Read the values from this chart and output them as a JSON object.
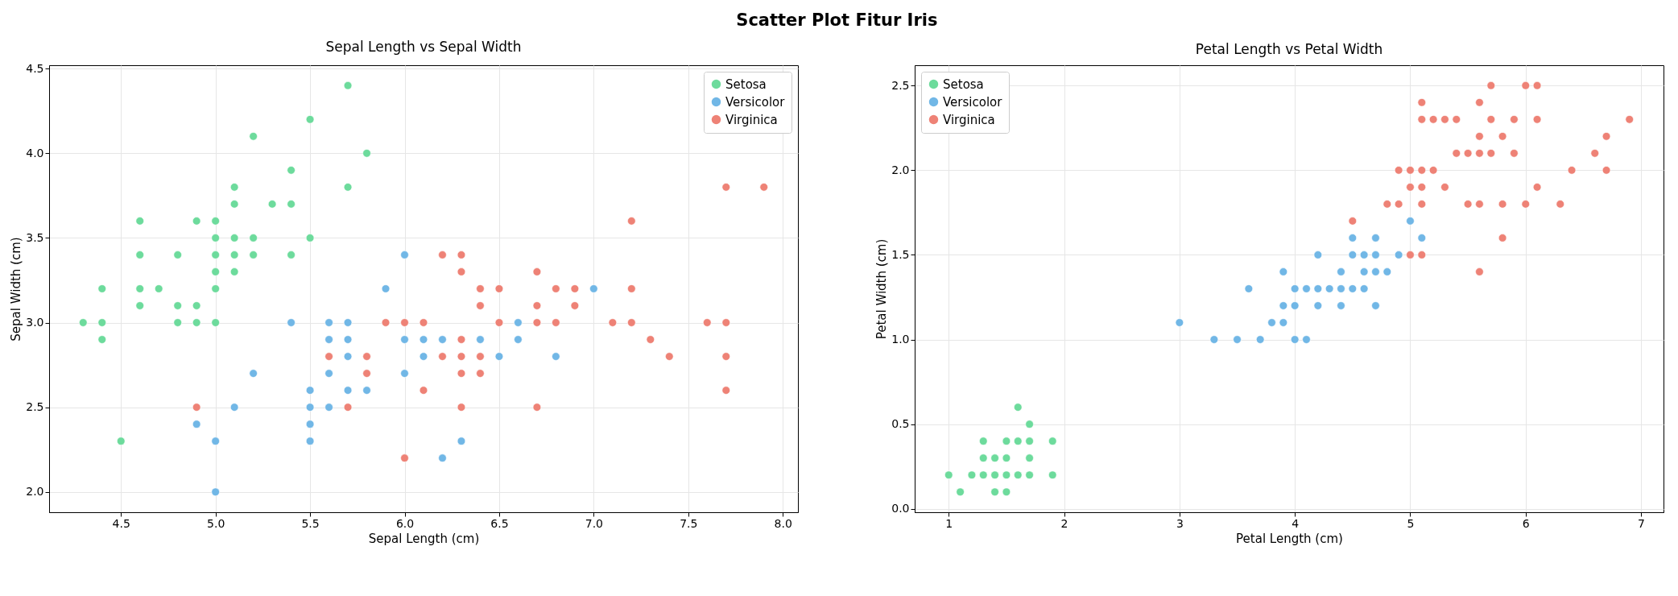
{
  "chart_data": [
    {
      "type": "scatter",
      "title": "Sepal Length vs Sepal Width",
      "xlabel": "Sepal Length (cm)",
      "ylabel": "Sepal Width (cm)",
      "annotations": [
        "Scatter Plot Fitur Iris"
      ],
      "legend": "top right",
      "grid": true,
      "marker": "circle",
      "xlim": [
        4.12,
        8.08
      ],
      "xticks": [
        4.5,
        {
          "value": 5,
          "label": "5.0"
        },
        5.5,
        {
          "value": 6,
          "label": "6.0"
        },
        6.5,
        {
          "value": 7,
          "label": "7.0"
        },
        7.5,
        {
          "value": 8,
          "label": "8.0"
        }
      ],
      "ylim": [
        1.88,
        4.52
      ],
      "yticks": [
        {
          "value": 2,
          "label": "2.0"
        },
        2.5,
        {
          "value": 3,
          "label": "3.0"
        },
        3.5,
        {
          "value": 4,
          "label": "4.0"
        },
        4.5
      ],
      "series": [
        {
          "name": "Setosa",
          "color": "#6ddb9c",
          "x": [
            5.1,
            4.9,
            4.7,
            4.6,
            5.0,
            5.4,
            4.6,
            5.0,
            4.4,
            4.9,
            5.4,
            4.8,
            4.8,
            4.3,
            5.8,
            5.7,
            5.7,
            5.1,
            5.4,
            5.1,
            4.6,
            5.1,
            5.0,
            5.2,
            5.2,
            4.8,
            5.2,
            5.5,
            5.0,
            5.5,
            4.9,
            4.4,
            5.1,
            5.0,
            4.5,
            4.4,
            4.6,
            5.3,
            5.0
          ],
          "values": [
            3.5,
            3.0,
            3.2,
            3.1,
            3.6,
            3.9,
            3.4,
            3.4,
            2.9,
            3.1,
            3.7,
            3.4,
            3.0,
            3.0,
            4.0,
            4.4,
            3.8,
            3.8,
            3.4,
            3.7,
            3.6,
            3.3,
            3.0,
            3.5,
            3.4,
            3.1,
            4.1,
            4.2,
            3.2,
            3.5,
            3.6,
            3.0,
            3.4,
            3.5,
            2.3,
            3.2,
            3.2,
            3.7,
            3.3
          ]
        },
        {
          "name": "Versicolor",
          "color": "#71b7e6",
          "x": [
            7.0,
            5.5,
            6.5,
            5.7,
            4.9,
            6.6,
            5.2,
            5.0,
            6.1,
            5.6,
            5.6,
            6.2,
            5.6,
            5.9,
            6.1,
            6.4,
            6.6,
            6.8,
            6.0,
            5.7,
            5.5,
            6.0,
            5.4,
            6.0,
            6.3,
            5.5,
            5.5,
            5.8,
            5.0,
            5.6,
            5.7,
            5.7,
            6.2,
            5.1
          ],
          "values": [
            3.2,
            2.3,
            2.8,
            2.8,
            2.4,
            2.9,
            2.7,
            2.0,
            2.9,
            2.9,
            3.0,
            2.2,
            2.5,
            3.2,
            2.8,
            2.9,
            3.0,
            2.8,
            2.9,
            2.6,
            2.4,
            2.7,
            3.0,
            3.4,
            2.3,
            2.5,
            2.6,
            2.6,
            2.3,
            2.7,
            3.0,
            2.9,
            2.9,
            2.5
          ]
        },
        {
          "name": "Virginica",
          "color": "#ee8276",
          "x": [
            6.3,
            5.8,
            7.1,
            6.3,
            6.5,
            7.6,
            4.9,
            7.3,
            6.7,
            7.2,
            6.5,
            6.4,
            6.8,
            5.7,
            5.8,
            6.4,
            7.7,
            7.7,
            6.0,
            6.9,
            5.6,
            7.7,
            6.3,
            6.7,
            7.2,
            6.2,
            6.1,
            6.4,
            7.2,
            7.4,
            7.9,
            6.3,
            6.1,
            7.7,
            6.3,
            6.4,
            6.0,
            6.9,
            6.7,
            6.8,
            6.7,
            6.3,
            6.2,
            5.9
          ],
          "values": [
            3.3,
            2.7,
            3.0,
            2.9,
            3.0,
            3.0,
            2.5,
            2.9,
            2.5,
            3.6,
            3.2,
            2.7,
            3.0,
            2.5,
            2.8,
            3.2,
            3.8,
            2.6,
            2.2,
            3.2,
            2.8,
            2.8,
            2.7,
            3.3,
            3.2,
            2.8,
            3.0,
            2.8,
            3.0,
            2.8,
            3.8,
            2.8,
            2.6,
            3.0,
            3.4,
            3.1,
            3.0,
            3.1,
            3.1,
            3.2,
            3.0,
            2.5,
            3.4,
            3.0
          ]
        }
      ]
    },
    {
      "type": "scatter",
      "title": "Petal Length vs Petal Width",
      "xlabel": "Petal Length (cm)",
      "ylabel": "Petal Width (cm)",
      "legend": "top left",
      "grid": true,
      "marker": "circle",
      "xlim": [
        0.705,
        7.195
      ],
      "xticks": [
        1,
        2,
        3,
        4,
        5,
        6,
        7
      ],
      "ylim": [
        -0.02,
        2.62
      ],
      "yticks": [
        {
          "value": 0,
          "label": "0.0"
        },
        0.5,
        {
          "value": 1,
          "label": "1.0"
        },
        1.5,
        {
          "value": 2,
          "label": "2.0"
        },
        2.5
      ],
      "series": [
        {
          "name": "Setosa",
          "color": "#6ddb9c",
          "x": [
            1.4,
            1.3,
            1.5,
            1.7,
            1.4,
            1.5,
            1.6,
            1.4,
            1.1,
            1.2,
            1.5,
            1.3,
            1.7,
            1.5,
            1.7,
            1.0,
            1.7,
            1.9,
            1.6,
            1.3,
            1.6,
            1.9
          ],
          "values": [
            0.2,
            0.2,
            0.2,
            0.4,
            0.3,
            0.1,
            0.2,
            0.1,
            0.1,
            0.2,
            0.4,
            0.4,
            0.3,
            0.3,
            0.2,
            0.2,
            0.5,
            0.2,
            0.4,
            0.3,
            0.6,
            0.4
          ]
        },
        {
          "name": "Versicolor",
          "color": "#71b7e6",
          "x": [
            4.7,
            4.5,
            4.9,
            4.0,
            4.6,
            4.5,
            4.7,
            3.3,
            4.6,
            3.9,
            3.5,
            4.2,
            4.0,
            3.6,
            4.4,
            4.1,
            3.9,
            4.7,
            4.3,
            4.8,
            5.0,
            3.8,
            3.7,
            3.9,
            5.1,
            4.5,
            4.7,
            4.4,
            4.1,
            4.4,
            4.6,
            4.0,
            4.2,
            4.2,
            3.0
          ],
          "values": [
            1.4,
            1.5,
            1.5,
            1.3,
            1.5,
            1.3,
            1.6,
            1.0,
            1.3,
            1.4,
            1.0,
            1.5,
            1.0,
            1.3,
            1.4,
            1.0,
            1.1,
            1.2,
            1.3,
            1.4,
            1.7,
            1.1,
            1.0,
            1.2,
            1.6,
            1.6,
            1.5,
            1.3,
            1.3,
            1.2,
            1.4,
            1.2,
            1.3,
            1.2,
            1.1
          ]
        },
        {
          "name": "Virginica",
          "color": "#ee8276",
          "x": [
            6.0,
            5.1,
            5.9,
            5.6,
            5.8,
            6.6,
            4.5,
            6.3,
            5.8,
            6.1,
            5.1,
            5.3,
            5.5,
            5.0,
            5.1,
            5.3,
            5.5,
            6.7,
            6.9,
            5.0,
            5.7,
            4.9,
            6.7,
            4.9,
            5.7,
            6.0,
            4.8,
            5.6,
            5.8,
            6.1,
            6.4,
            5.6,
            5.1,
            5.6,
            6.1,
            5.6,
            5.4,
            5.1,
            5.9,
            5.7,
            5.2,
            5.0,
            5.2,
            5.4,
            5.1
          ],
          "values": [
            2.5,
            1.9,
            2.1,
            1.8,
            2.2,
            2.1,
            1.7,
            1.8,
            1.8,
            2.5,
            2.0,
            1.9,
            2.1,
            2.0,
            2.4,
            2.3,
            1.8,
            2.2,
            2.3,
            1.5,
            2.3,
            2.0,
            2.0,
            1.8,
            2.1,
            1.8,
            1.8,
            2.1,
            1.6,
            1.9,
            2.0,
            2.2,
            1.5,
            1.4,
            2.3,
            2.4,
            2.1,
            2.3,
            2.3,
            2.5,
            2.3,
            1.9,
            2.0,
            2.3,
            1.8
          ]
        }
      ]
    }
  ]
}
